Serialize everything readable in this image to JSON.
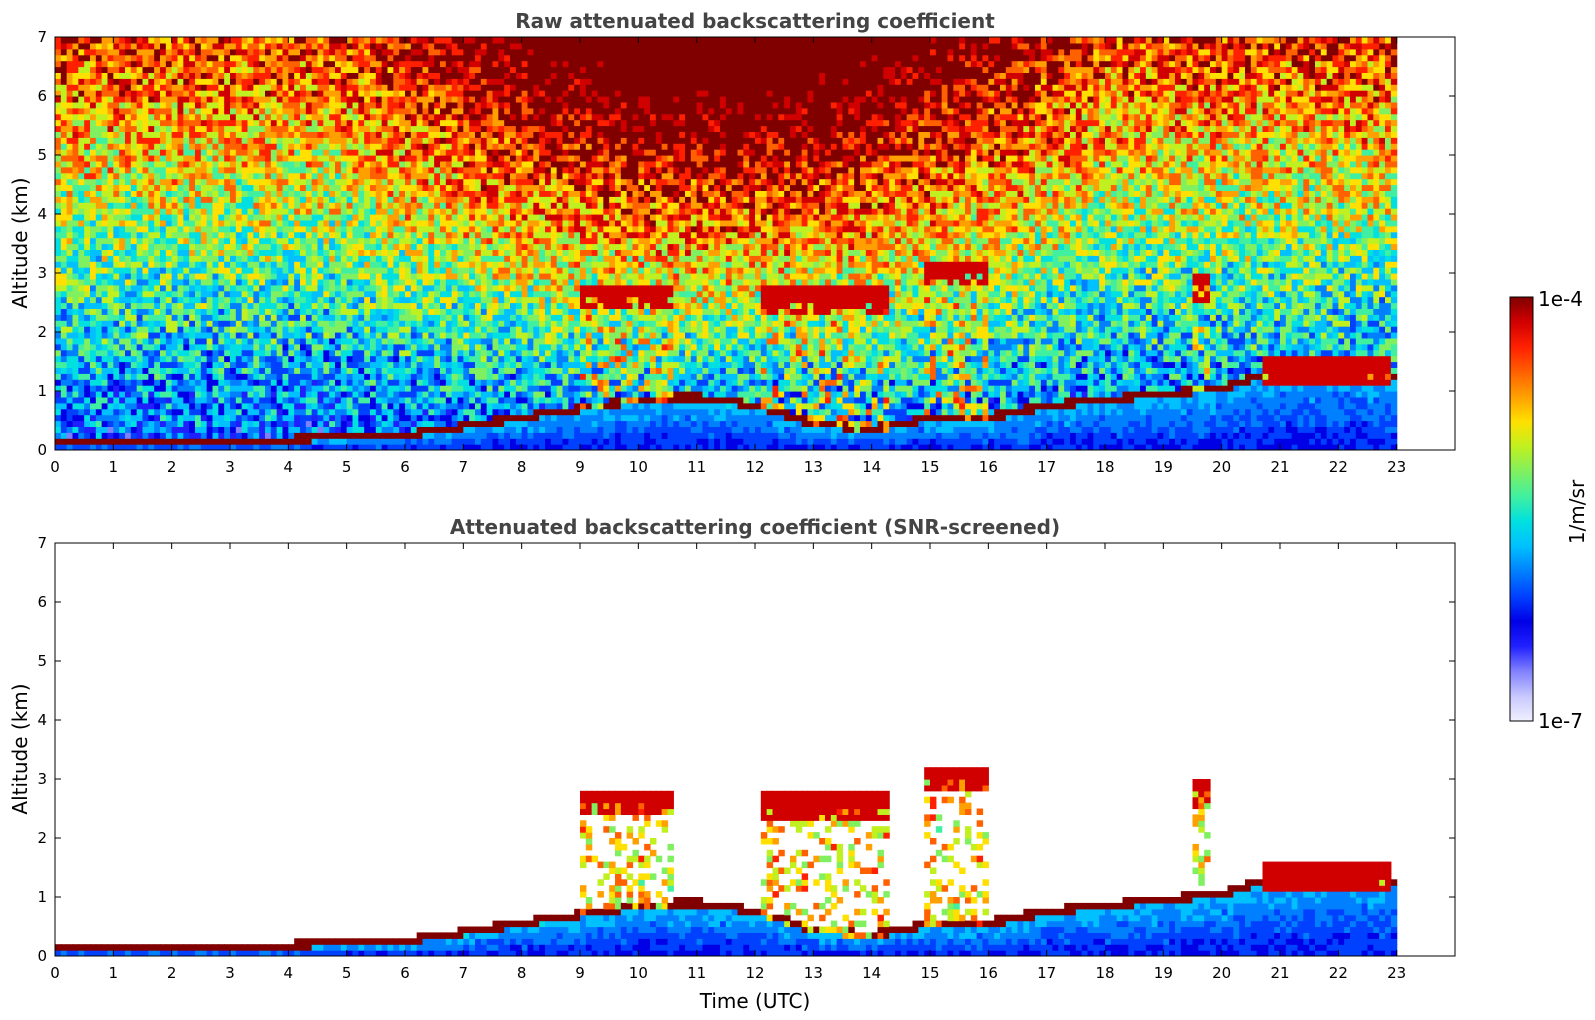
{
  "chart_data": [
    {
      "type": "heatmap",
      "title": "Raw attenuated backscattering coefficient",
      "ylabel": "Altitude (km)",
      "xlabel": "",
      "xlim": [
        0,
        24
      ],
      "ylim": [
        0,
        7
      ],
      "xticks": [
        "0",
        "1",
        "2",
        "3",
        "4",
        "5",
        "6",
        "7",
        "8",
        "9",
        "10",
        "11",
        "12",
        "13",
        "14",
        "15",
        "16",
        "17",
        "18",
        "19",
        "20",
        "21",
        "22",
        "23"
      ],
      "yticks": [
        "0",
        "1",
        "2",
        "3",
        "4",
        "5",
        "6",
        "7"
      ],
      "data_end_time": 23,
      "features": {
        "boundary_layer_top_km": [
          [
            0,
            0.12
          ],
          [
            4,
            0.12
          ],
          [
            5,
            0.2
          ],
          [
            6,
            0.2
          ],
          [
            7,
            0.35
          ],
          [
            8,
            0.5
          ],
          [
            9,
            0.65
          ],
          [
            10,
            0.8
          ],
          [
            11,
            0.85
          ],
          [
            12,
            0.7
          ],
          [
            13,
            0.4
          ],
          [
            14,
            0.3
          ],
          [
            15,
            0.5
          ],
          [
            16,
            0.5
          ],
          [
            17,
            0.7
          ],
          [
            18,
            0.8
          ],
          [
            19,
            0.9
          ],
          [
            20,
            1.0
          ],
          [
            21,
            1.3
          ],
          [
            22,
            1.35
          ],
          [
            23,
            1.15
          ]
        ],
        "cloud_layers": [
          {
            "t0": 9.0,
            "t1": 10.6,
            "alt": 2.6
          },
          {
            "t0": 12.1,
            "t1": 14.3,
            "alt": 2.55
          },
          {
            "t0": 14.9,
            "t1": 16.0,
            "alt": 3.0
          },
          {
            "t0": 19.5,
            "t1": 19.8,
            "alt": 2.8
          },
          {
            "t0": 20.7,
            "t1": 22.9,
            "alt": 1.35
          }
        ]
      }
    },
    {
      "type": "heatmap",
      "title": "Attenuated backscattering coefficient (SNR-screened)",
      "ylabel": "Altitude (km)",
      "xlabel": "Time (UTC)",
      "xlim": [
        0,
        24
      ],
      "ylim": [
        0,
        7
      ],
      "xticks": [
        "0",
        "1",
        "2",
        "3",
        "4",
        "5",
        "6",
        "7",
        "8",
        "9",
        "10",
        "11",
        "12",
        "13",
        "14",
        "15",
        "16",
        "17",
        "18",
        "19",
        "20",
        "21",
        "22",
        "23"
      ],
      "yticks": [
        "0",
        "1",
        "2",
        "3",
        "4",
        "5",
        "6",
        "7"
      ],
      "data_end_time": 23,
      "screened": true
    }
  ],
  "colorbar": {
    "label": "1/m/sr",
    "max_label": "1e-4",
    "min_label": "1e-7",
    "colors": [
      "#f0f0ff",
      "#c8c8ff",
      "#8080ff",
      "#2020ff",
      "#0000e6",
      "#0040ff",
      "#0080ff",
      "#00c0ff",
      "#00e0e0",
      "#40f0a0",
      "#80f060",
      "#c0f020",
      "#ffe000",
      "#ffa000",
      "#ff6000",
      "#ff2000",
      "#d00000",
      "#800000"
    ]
  }
}
